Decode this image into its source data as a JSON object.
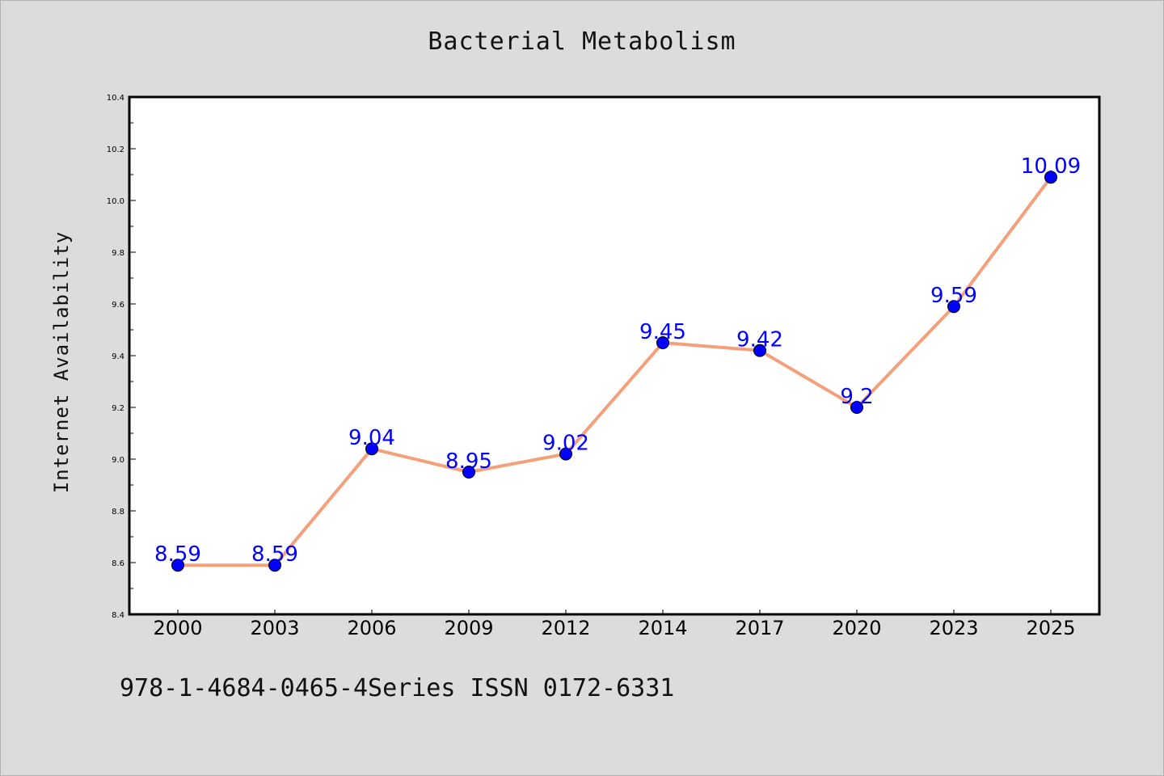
{
  "footer": {
    "text": "978-1-4684-0465-4Series ISSN 0172-6331"
  },
  "colors": {
    "background": "#dcdcdc",
    "plot_background": "#ffffff",
    "line": "#f4a07a",
    "marker": "#0000ff",
    "data_label": "#0000ff"
  },
  "chart_data": {
    "type": "line",
    "title": "Bacterial Metabolism",
    "xlabel": "",
    "ylabel": "Internet Availability",
    "categories": [
      "2000",
      "2003",
      "2006",
      "2009",
      "2012",
      "2014",
      "2017",
      "2020",
      "2023",
      "2025"
    ],
    "series": [
      {
        "values": [
          8.59,
          8.59,
          9.04,
          8.95,
          9.02,
          9.45,
          9.42,
          9.2,
          9.59,
          10.09
        ],
        "labels": [
          "8.59",
          "8.59",
          "9.04",
          "8.95",
          "9.02",
          "9.45",
          "9.42",
          "9.2",
          "9.59",
          "10.09"
        ]
      }
    ],
    "ylim": [
      8.4,
      10.4
    ],
    "yticks": [
      8.4,
      8.6,
      8.8,
      9.0,
      9.2,
      9.4,
      9.6,
      9.8,
      10.0,
      10.2,
      10.4
    ],
    "ytick_labels": [
      "8.4",
      "8.6",
      "8.8",
      "9.0",
      "9.2",
      "9.4",
      "9.6",
      "9.8",
      "10.0",
      "10.2",
      "10.4"
    ],
    "grid": false,
    "legend": "none"
  }
}
